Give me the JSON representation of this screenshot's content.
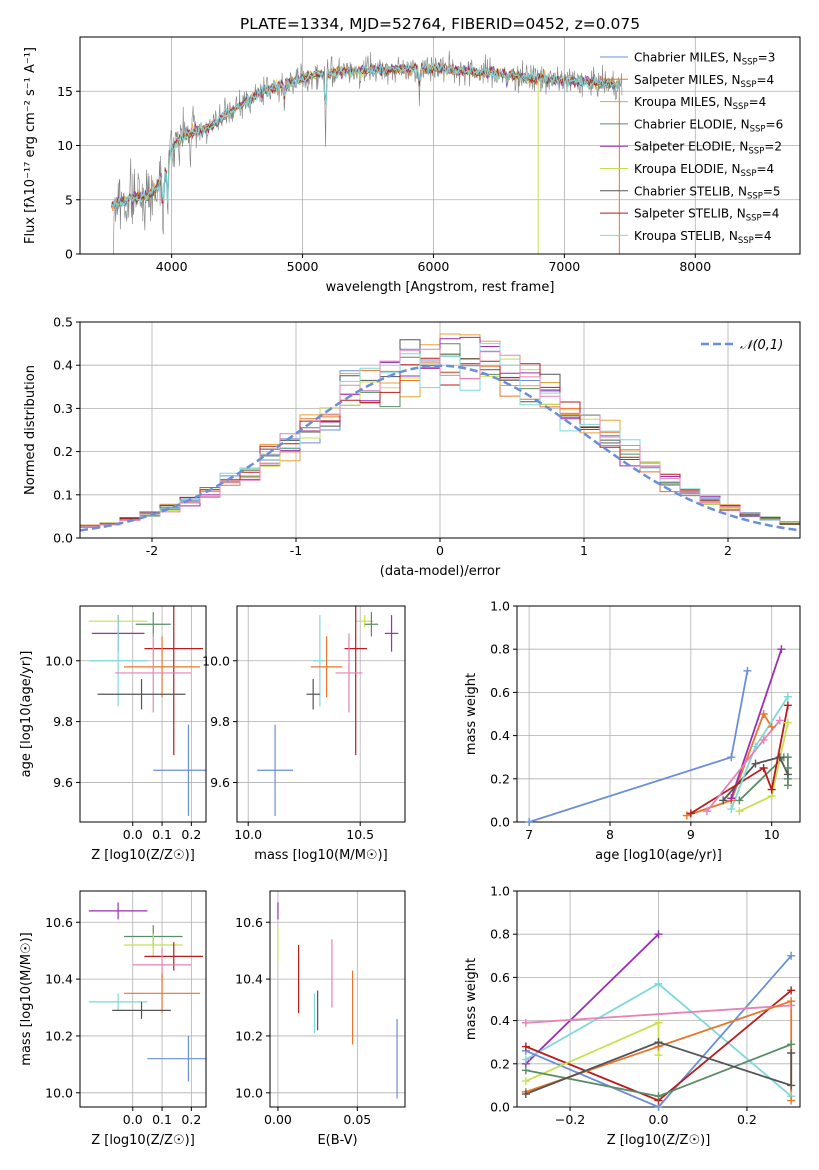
{
  "colors": {
    "blue": "#6a8fd8",
    "orange": "#e8762b",
    "green": "#5a8c66",
    "purple": "#9a2fb0",
    "yellow": "#c8e04f",
    "darkgray": "#555555",
    "red": "#b81c1c",
    "cyan": "#7fd8db",
    "pink": "#e682b6",
    "grid": "#b0b0b0"
  },
  "chart_data": [
    {
      "id": "spectrum",
      "type": "line",
      "title": "PLATE=1334, MJD=52764, FIBERID=0452, z=0.075",
      "xlabel": "wavelength [Angstrom, rest frame]",
      "ylabel": "Flux [fλ10⁻¹⁷ erg cm⁻² s⁻¹ A⁻¹]",
      "xlim": [
        3300,
        8800
      ],
      "ylim": [
        0,
        20
      ],
      "xticks": [
        4000,
        5000,
        6000,
        7000,
        8000
      ],
      "yticks": [
        0,
        5,
        10,
        15
      ],
      "legend_position": "top-right",
      "series": [
        {
          "name": "Chabrier MILES, N_SSP=3",
          "color": "#6a8fd8"
        },
        {
          "name": "Salpeter MILES, N_SSP=4",
          "color": "#e8762b"
        },
        {
          "name": "Kroupa MILES, N_SSP=4",
          "color": "#e8a23a"
        },
        {
          "name": "Chabrier ELODIE, N_SSP=6",
          "color": "#5a8c66"
        },
        {
          "name": "Salpeter ELODIE, N_SSP=2",
          "color": "#9a2fb0"
        },
        {
          "name": "Kroupa ELODIE, N_SSP=4",
          "color": "#c8e04f"
        },
        {
          "name": "Chabrier STELIB, N_SSP=5",
          "color": "#555555"
        },
        {
          "name": "Salpeter STELIB, N_SSP=4",
          "color": "#b81c1c"
        },
        {
          "name": "Kroupa STELIB, N_SSP=4",
          "color": "#7fd8db"
        }
      ],
      "continuum": {
        "x": [
          3550,
          3700,
          3850,
          3950,
          4000,
          4100,
          4300,
          4500,
          4700,
          4900,
          5100,
          5300,
          5600,
          6000,
          6300,
          6500,
          6700,
          7000,
          7200,
          7400
        ],
        "y": [
          4.5,
          5.2,
          5.5,
          7.5,
          9.8,
          11.0,
          11.8,
          13.5,
          15.0,
          15.8,
          16.5,
          16.8,
          17.0,
          17.2,
          16.8,
          16.6,
          16.3,
          16.0,
          15.8,
          15.6
        ]
      },
      "edge_drops": [
        {
          "x": 6800,
          "color": "#c8e04f"
        },
        {
          "x": 7420,
          "color": "#e8762b"
        }
      ]
    },
    {
      "id": "residuals",
      "type": "bar",
      "xlabel": "(data-model)/error",
      "ylabel": "Normed distribution",
      "xlim": [
        -2.5,
        2.5
      ],
      "ylim": [
        0,
        0.5
      ],
      "xticks": [
        -2,
        -1,
        0,
        1,
        2
      ],
      "yticks": [
        0.0,
        0.1,
        0.2,
        0.3,
        0.4,
        0.5
      ],
      "legend": "𝒩(0,1)",
      "legend_position": "top-right",
      "bins": 36,
      "gaussian": {
        "mu": 0,
        "sigma": 1,
        "color": "#6a8fd8"
      }
    },
    {
      "id": "age-vs-Z",
      "type": "scatter",
      "xlabel": "Z [log10(Z/Z☉)]",
      "ylabel": "age [log10(age/yr)]",
      "xlim": [
        -0.18,
        0.25
      ],
      "ylim": [
        9.47,
        10.18
      ],
      "xticks": [
        0.0,
        0.1,
        0.2
      ],
      "yticks": [
        9.6,
        9.8,
        10.0
      ],
      "points": [
        {
          "x": -0.05,
          "y": 10.13,
          "xerr": 0.1,
          "yerr": 0.02,
          "color": "#c8e04f"
        },
        {
          "x": 0.07,
          "y": 10.12,
          "xerr": 0.06,
          "yerr": 0.04,
          "color": "#5a8c66"
        },
        {
          "x": -0.05,
          "y": 10.09,
          "xerr": 0.09,
          "yerr": 0.06,
          "color": "#9a2fb0"
        },
        {
          "x": 0.14,
          "y": 10.04,
          "xerr": 0.1,
          "yerr": 0.35,
          "color": "#b81c1c"
        },
        {
          "x": -0.05,
          "y": 10.0,
          "xerr": 0.1,
          "yerr": 0.15,
          "color": "#7fd8db"
        },
        {
          "x": 0.1,
          "y": 9.98,
          "xerr": 0.13,
          "yerr": 0.1,
          "color": "#e8762b"
        },
        {
          "x": 0.07,
          "y": 9.96,
          "xerr": 0.13,
          "yerr": 0.13,
          "color": "#e682b6"
        },
        {
          "x": 0.03,
          "y": 9.89,
          "xerr": 0.15,
          "yerr": 0.05,
          "color": "#555555"
        },
        {
          "x": 0.19,
          "y": 9.64,
          "xerr": 0.12,
          "yerr": 0.15,
          "color": "#6a8fd8"
        }
      ]
    },
    {
      "id": "age-vs-mass",
      "type": "scatter",
      "xlabel": "mass [log10(M/M☉)]",
      "ylabel": "",
      "xlim": [
        9.95,
        10.7
      ],
      "ylim": [
        9.47,
        10.18
      ],
      "xticks": [
        10.0,
        10.5
      ],
      "yticks": [
        9.6,
        9.8,
        10.0
      ],
      "points": [
        {
          "x": 10.52,
          "y": 10.13,
          "xerr": 0.04,
          "yerr": 0.02,
          "color": "#c8e04f"
        },
        {
          "x": 10.55,
          "y": 10.12,
          "xerr": 0.03,
          "yerr": 0.04,
          "color": "#5a8c66"
        },
        {
          "x": 10.64,
          "y": 10.09,
          "xerr": 0.03,
          "yerr": 0.06,
          "color": "#9a2fb0"
        },
        {
          "x": 10.48,
          "y": 10.04,
          "xerr": 0.05,
          "yerr": 0.35,
          "color": "#b81c1c"
        },
        {
          "x": 10.32,
          "y": 10.0,
          "xerr": 0.03,
          "yerr": 0.15,
          "color": "#7fd8db"
        },
        {
          "x": 10.35,
          "y": 9.98,
          "xerr": 0.07,
          "yerr": 0.1,
          "color": "#e8762b"
        },
        {
          "x": 10.45,
          "y": 9.96,
          "xerr": 0.06,
          "yerr": 0.13,
          "color": "#e682b6"
        },
        {
          "x": 10.29,
          "y": 9.89,
          "xerr": 0.03,
          "yerr": 0.05,
          "color": "#555555"
        },
        {
          "x": 10.12,
          "y": 9.64,
          "xerr": 0.08,
          "yerr": 0.15,
          "color": "#6a8fd8"
        }
      ]
    },
    {
      "id": "mass-weight-vs-age",
      "type": "line",
      "xlabel": "age [log10(age/yr)]",
      "ylabel": "mass weight",
      "xlim": [
        6.85,
        10.35
      ],
      "ylim": [
        0,
        1
      ],
      "xticks": [
        7,
        8,
        9,
        10
      ],
      "yticks": [
        0.0,
        0.2,
        0.4,
        0.6,
        0.8,
        1.0
      ],
      "series": [
        {
          "color": "#6a8fd8",
          "x": [
            7.0,
            9.5,
            9.7
          ],
          "y": [
            0.0,
            0.3,
            0.7
          ]
        },
        {
          "color": "#e8762b",
          "x": [
            8.95,
            9.5,
            9.9,
            10.0
          ],
          "y": [
            0.03,
            0.1,
            0.5,
            0.44
          ]
        },
        {
          "color": "#5a8c66",
          "x": [
            9.6,
            10.15,
            10.2,
            10.2,
            10.2,
            10.2
          ],
          "y": [
            0.1,
            0.3,
            0.3,
            0.17,
            0.25,
            0.2
          ]
        },
        {
          "color": "#9a2fb0",
          "x": [
            9.5,
            10.12
          ],
          "y": [
            0.11,
            0.8
          ]
        },
        {
          "color": "#c8e04f",
          "x": [
            9.6,
            10.0,
            10.2
          ],
          "y": [
            0.05,
            0.12,
            0.46
          ]
        },
        {
          "color": "#555555",
          "x": [
            9.4,
            9.8,
            10.1,
            10.2
          ],
          "y": [
            0.1,
            0.27,
            0.3,
            0.22
          ]
        },
        {
          "color": "#b81c1c",
          "x": [
            9.0,
            9.9,
            10.0,
            10.2
          ],
          "y": [
            0.04,
            0.25,
            0.15,
            0.54
          ]
        },
        {
          "color": "#7fd8db",
          "x": [
            9.5,
            9.8,
            10.2
          ],
          "y": [
            0.06,
            0.35,
            0.58
          ]
        },
        {
          "color": "#e682b6",
          "x": [
            9.2,
            9.9,
            10.1
          ],
          "y": [
            0.05,
            0.38,
            0.47
          ]
        }
      ]
    },
    {
      "id": "mass-vs-Z",
      "type": "scatter",
      "xlabel": "Z [log10(Z/Z☉)]",
      "ylabel": "mass [log10(M/M☉)]",
      "xlim": [
        -0.18,
        0.25
      ],
      "ylim": [
        9.95,
        10.71
      ],
      "xticks": [
        0.0,
        0.1,
        0.2
      ],
      "yticks": [
        10.0,
        10.2,
        10.4,
        10.6
      ],
      "points": [
        {
          "x": -0.05,
          "y": 10.64,
          "xerr": 0.1,
          "yerr": 0.03,
          "color": "#9a2fb0"
        },
        {
          "x": 0.07,
          "y": 10.55,
          "xerr": 0.1,
          "yerr": 0.04,
          "color": "#5a8c66"
        },
        {
          "x": 0.07,
          "y": 10.52,
          "xerr": 0.1,
          "yerr": 0.04,
          "color": "#c8e04f"
        },
        {
          "x": 0.14,
          "y": 10.48,
          "xerr": 0.1,
          "yerr": 0.05,
          "color": "#b81c1c"
        },
        {
          "x": 0.1,
          "y": 10.45,
          "xerr": 0.1,
          "yerr": 0.06,
          "color": "#e682b6"
        },
        {
          "x": 0.1,
          "y": 10.35,
          "xerr": 0.13,
          "yerr": 0.07,
          "color": "#e8762b"
        },
        {
          "x": -0.05,
          "y": 10.32,
          "xerr": 0.1,
          "yerr": 0.03,
          "color": "#7fd8db"
        },
        {
          "x": 0.03,
          "y": 10.29,
          "xerr": 0.1,
          "yerr": 0.03,
          "color": "#555555"
        },
        {
          "x": 0.19,
          "y": 10.12,
          "xerr": 0.14,
          "yerr": 0.08,
          "color": "#6a8fd8"
        }
      ]
    },
    {
      "id": "mass-vs-EBV",
      "type": "scatter",
      "xlabel": "E(B-V)",
      "ylabel": "",
      "xlim": [
        -0.005,
        0.08
      ],
      "ylim": [
        9.95,
        10.71
      ],
      "xticks": [
        0.0,
        0.05
      ],
      "yticks": [
        10.0,
        10.2,
        10.4,
        10.6
      ],
      "points": [
        {
          "x": 0.0,
          "y": 10.64,
          "yerr": 0.03,
          "color": "#9a2fb0"
        },
        {
          "x": 0.0,
          "y": 10.52,
          "yerr": 0.06,
          "color": "#c8e04f"
        },
        {
          "x": 0.013,
          "y": 10.4,
          "yerr": 0.12,
          "color": "#b81c1c"
        },
        {
          "x": 0.023,
          "y": 10.28,
          "yerr": 0.07,
          "color": "#7fd8db"
        },
        {
          "x": 0.025,
          "y": 10.29,
          "yerr": 0.07,
          "color": "#555555"
        },
        {
          "x": 0.034,
          "y": 10.42,
          "yerr": 0.12,
          "color": "#e682b6"
        },
        {
          "x": 0.047,
          "y": 10.3,
          "yerr": 0.13,
          "color": "#e8762b"
        },
        {
          "x": 0.075,
          "y": 10.12,
          "yerr": 0.14,
          "color": "#6a8fd8"
        }
      ]
    },
    {
      "id": "mass-weight-vs-Z",
      "type": "line",
      "xlabel": "Z [log10(Z/Z☉)]",
      "ylabel": "mass weight",
      "xlim": [
        -0.32,
        0.32
      ],
      "ylim": [
        0,
        1
      ],
      "xticks": [
        -0.2,
        0.0,
        0.2
      ],
      "yticks": [
        0.0,
        0.2,
        0.4,
        0.6,
        0.8,
        1.0
      ],
      "series": [
        {
          "color": "#9a2fb0",
          "x": [
            -0.3,
            0.0
          ],
          "y": [
            0.2,
            0.8
          ]
        },
        {
          "color": "#7fd8db",
          "x": [
            -0.3,
            0.0,
            0.3
          ],
          "y": [
            0.22,
            0.57,
            0.05
          ]
        },
        {
          "color": "#6a8fd8",
          "x": [
            -0.3,
            0.0,
            0.3
          ],
          "y": [
            0.26,
            0.0,
            0.7
          ]
        },
        {
          "color": "#b81c1c",
          "x": [
            -0.3,
            0.0,
            0.3
          ],
          "y": [
            0.28,
            0.03,
            0.54
          ]
        },
        {
          "color": "#e682b6",
          "x": [
            -0.3,
            0.3
          ],
          "y": [
            0.39,
            0.47
          ]
        },
        {
          "color": "#e8762b",
          "x": [
            -0.3,
            0.0,
            0.3,
            0.3
          ],
          "y": [
            0.07,
            0.28,
            0.49,
            0.03
          ]
        },
        {
          "color": "#c8e04f",
          "x": [
            -0.3,
            0.0,
            0.0
          ],
          "y": [
            0.12,
            0.39,
            0.24
          ]
        },
        {
          "color": "#5a8c66",
          "x": [
            -0.3,
            0.0,
            0.3
          ],
          "y": [
            0.17,
            0.05,
            0.29
          ]
        },
        {
          "color": "#555555",
          "x": [
            -0.3,
            0.0,
            0.3,
            0.3
          ],
          "y": [
            0.06,
            0.3,
            0.1,
            0.25
          ]
        }
      ]
    }
  ]
}
